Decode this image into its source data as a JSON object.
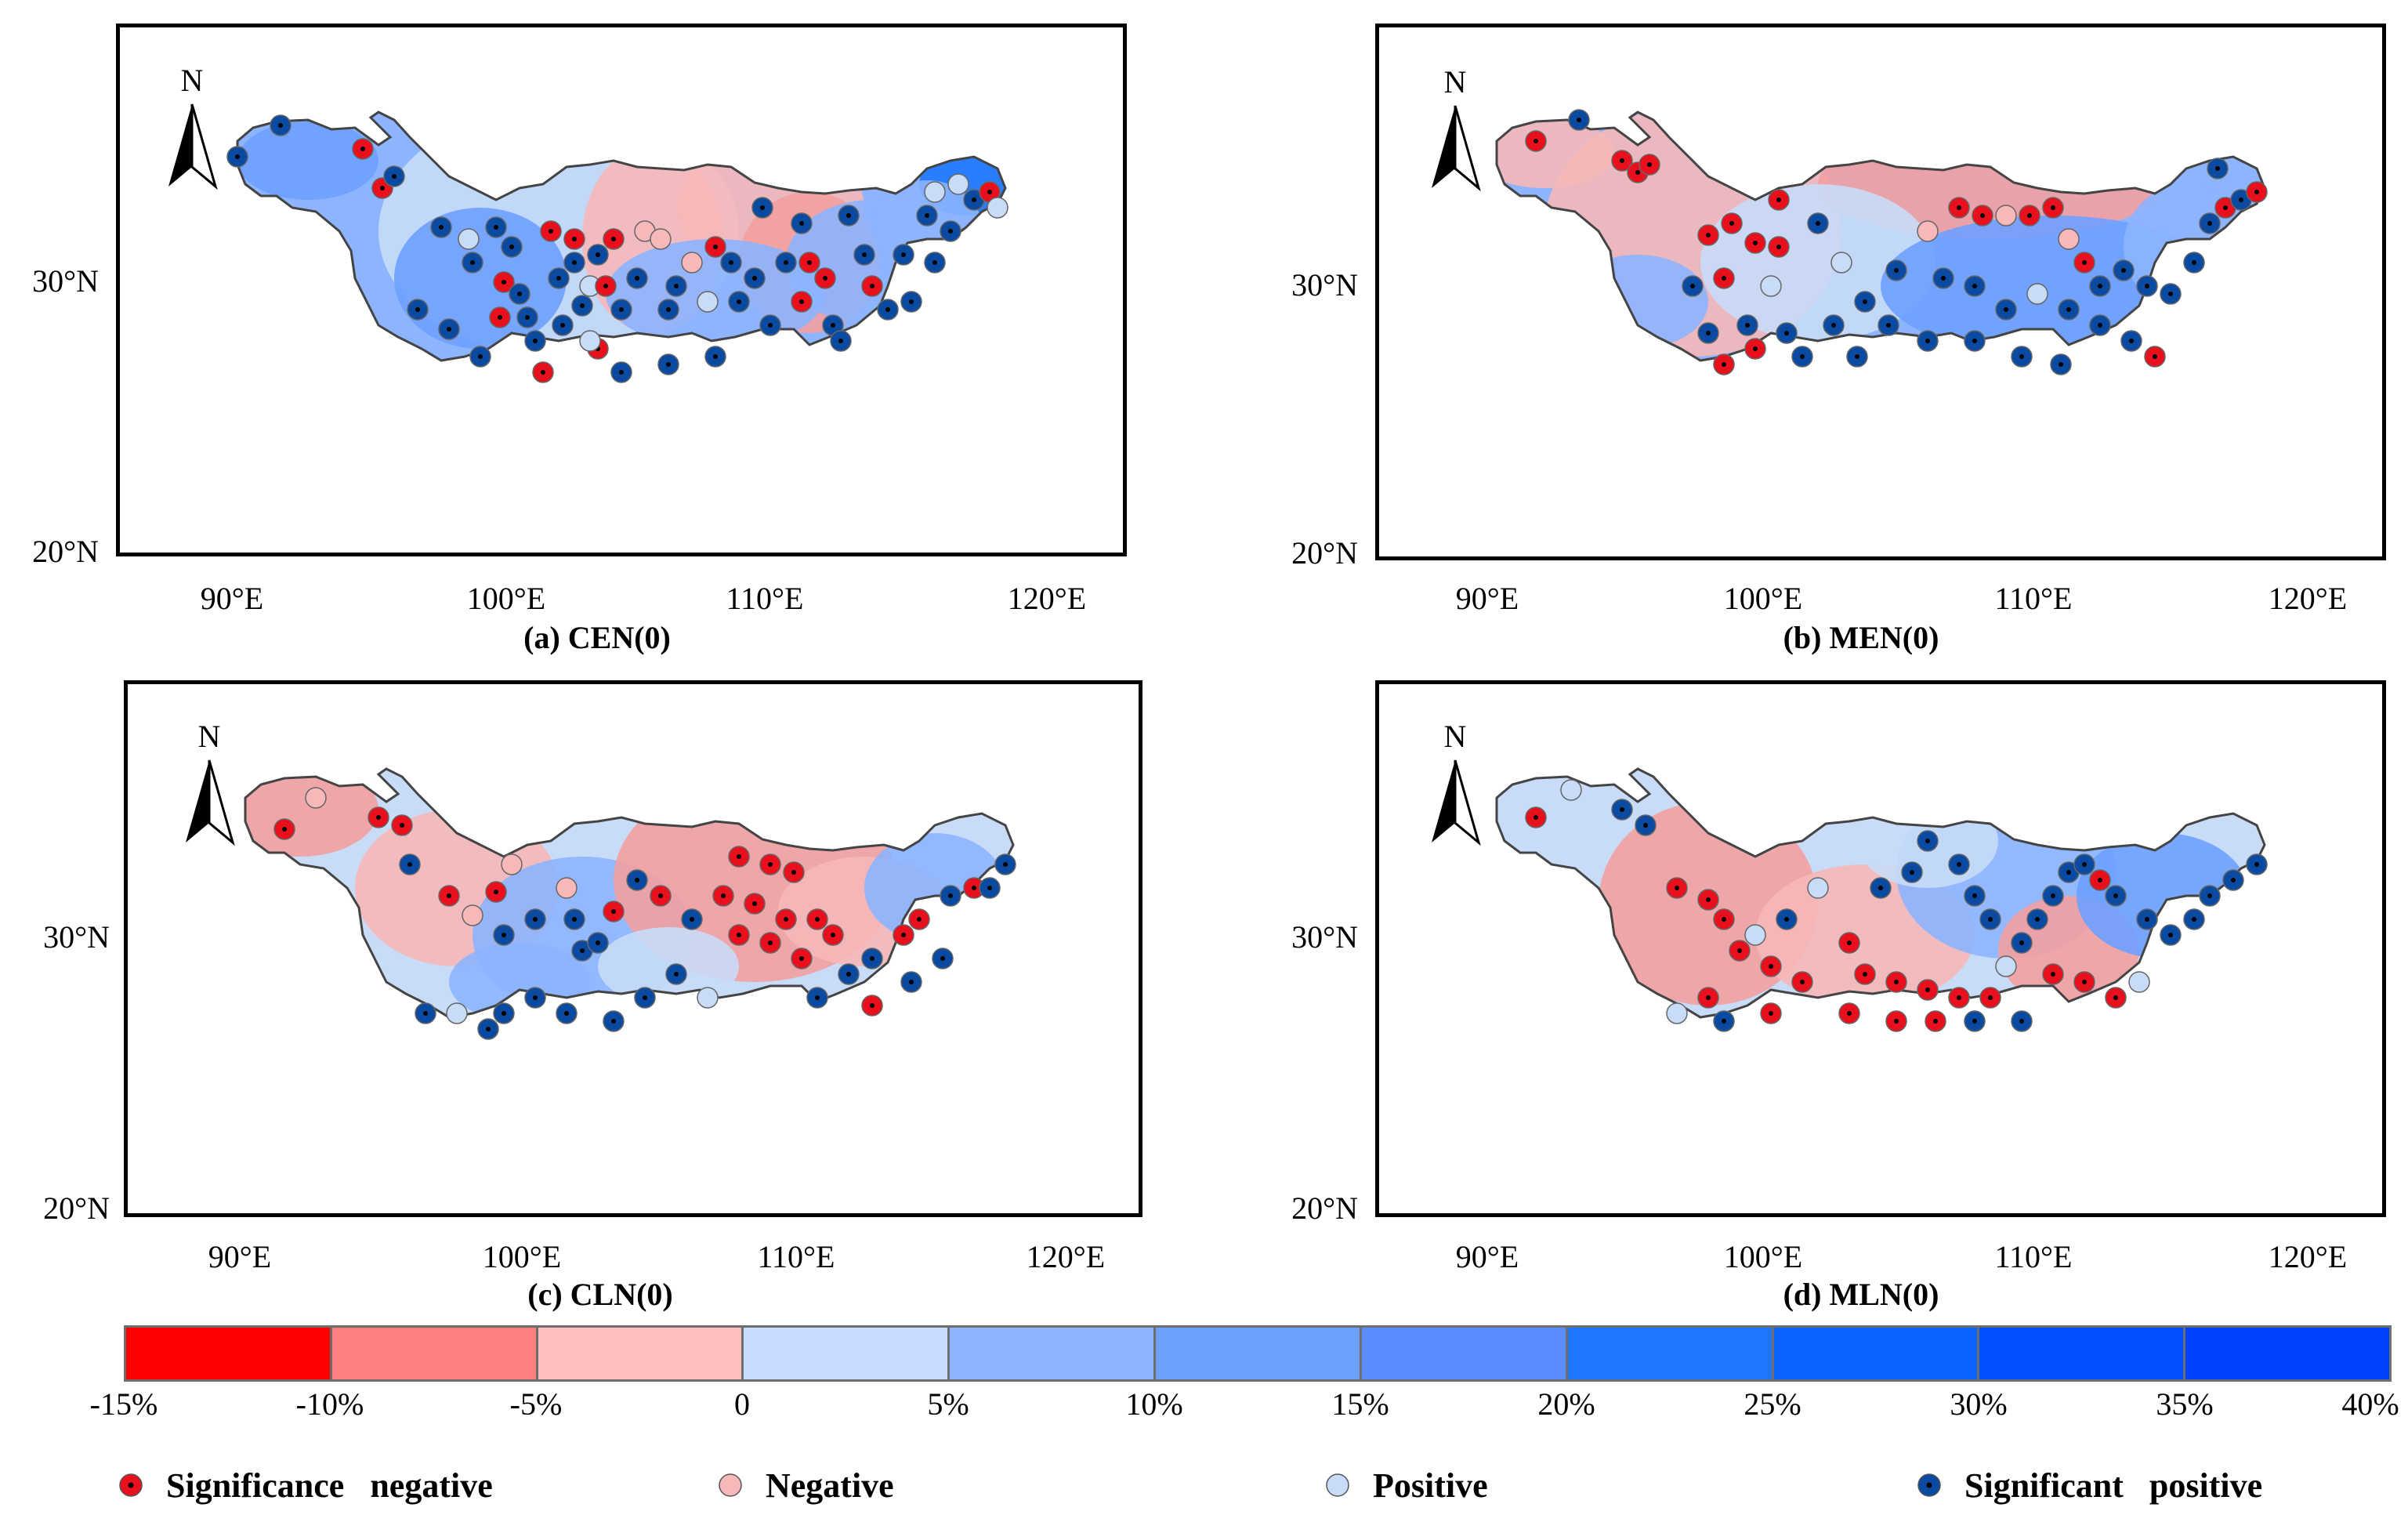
{
  "panels": [
    {
      "id": "a",
      "title": "(a) CEN(0)",
      "north": "N",
      "lat_labels": [
        "30°N",
        "20°N"
      ],
      "lon_labels": [
        "90°E",
        "100°E",
        "110°E",
        "120°E"
      ]
    },
    {
      "id": "b",
      "title": "(b) MEN(0)",
      "north": "N",
      "lat_labels": [
        "30°N",
        "20°N"
      ],
      "lon_labels": [
        "90°E",
        "100°E",
        "110°E",
        "120°E"
      ]
    },
    {
      "id": "c",
      "title": "(c) CLN(0)",
      "north": "N",
      "lat_labels": [
        "30°N",
        "20°N"
      ],
      "lon_labels": [
        "90°E",
        "100°E",
        "110°E",
        "120°E"
      ]
    },
    {
      "id": "d",
      "title": "(d) MLN(0)",
      "north": "N",
      "lat_labels": [
        "30°N",
        "20°N"
      ],
      "lon_labels": [
        "90°E",
        "100°E",
        "110°E",
        "120°E"
      ]
    }
  ],
  "colorbar": {
    "ticks": [
      "-15%",
      "-10%",
      "-5%",
      "0",
      "5%",
      "10%",
      "15%",
      "20%",
      "25%",
      "30%",
      "35%",
      "40%"
    ],
    "colors": [
      "#ff0000",
      "#ff7f7f",
      "#ffbebe",
      "#c8dcff",
      "#8cb4ff",
      "#6ea0ff",
      "#5a8cff",
      "#1e78ff",
      "#0a64ff",
      "#0050ff",
      "#0040ff"
    ]
  },
  "legend": [
    {
      "label": "Significance   negative",
      "icon": "sig-negative-dot",
      "fill": "#e8101c",
      "center": "#000000"
    },
    {
      "label": "Negative",
      "icon": "negative-dot",
      "fill": "#f6b8b8",
      "center": ""
    },
    {
      "label": "Positive",
      "icon": "positive-dot",
      "fill": "#c8dcf8",
      "center": ""
    },
    {
      "label": "Significant   positive",
      "icon": "sig-positive-dot",
      "fill": "#0a4aa0",
      "center": "#000000"
    }
  ]
}
